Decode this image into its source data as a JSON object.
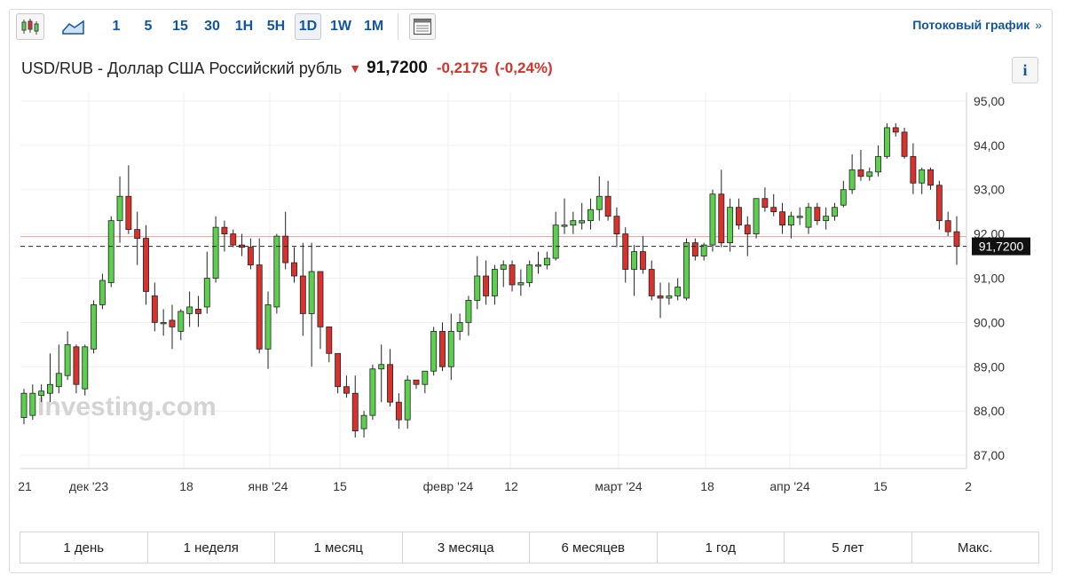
{
  "toolbar": {
    "intervals": [
      "1",
      "5",
      "15",
      "30",
      "1H",
      "5H",
      "1D",
      "1W",
      "1M"
    ],
    "active_interval": "1D",
    "stream_label": "Потоковый график",
    "stream_arrow": "»"
  },
  "header": {
    "name": "USD/RUB - Доллар США Российский рубль",
    "price": "91,7200",
    "change": "-0,2175",
    "change_pct": "(-0,24%)",
    "info_label": "i"
  },
  "colors": {
    "up": "#5ccf4e",
    "down": "#d9312b",
    "accent": "#1256a0"
  },
  "chart_data": {
    "type": "candlestick",
    "ylim": [
      86.7,
      95.2
    ],
    "y_ticks": [
      "87,00",
      "88,00",
      "89,00",
      "90,00",
      "91,00",
      "92,00",
      "93,00",
      "94,00",
      "95,00"
    ],
    "y_tick_values": [
      87,
      88,
      89,
      90,
      91,
      92,
      93,
      94,
      95
    ],
    "x_tick_labels": [
      "21",
      "дек '23",
      "18",
      "янв '24",
      "15",
      "февр '24",
      "12",
      "март '24",
      "18",
      "апр '24",
      "15",
      "2"
    ],
    "last_price_label": "91,7200",
    "last_price": 91.72,
    "prev_close": 91.94,
    "watermark": "Investing.com",
    "candles": [
      {
        "o": 87.85,
        "h": 88.5,
        "l": 87.7,
        "c": 88.4
      },
      {
        "o": 87.9,
        "h": 88.6,
        "l": 87.8,
        "c": 88.4
      },
      {
        "o": 88.35,
        "h": 88.6,
        "l": 88.2,
        "c": 88.45
      },
      {
        "o": 88.4,
        "h": 89.3,
        "l": 88.2,
        "c": 88.6
      },
      {
        "o": 88.55,
        "h": 89.5,
        "l": 88.4,
        "c": 88.85
      },
      {
        "o": 88.8,
        "h": 89.8,
        "l": 88.7,
        "c": 89.5
      },
      {
        "o": 89.45,
        "h": 89.5,
        "l": 88.4,
        "c": 88.6
      },
      {
        "o": 88.5,
        "h": 89.5,
        "l": 88.35,
        "c": 89.45
      },
      {
        "o": 89.4,
        "h": 90.5,
        "l": 89.3,
        "c": 90.4
      },
      {
        "o": 90.4,
        "h": 91.1,
        "l": 90.3,
        "c": 90.95
      },
      {
        "o": 90.9,
        "h": 92.4,
        "l": 90.8,
        "c": 92.3
      },
      {
        "o": 92.3,
        "h": 93.3,
        "l": 91.8,
        "c": 92.85
      },
      {
        "o": 92.85,
        "h": 93.55,
        "l": 92.0,
        "c": 92.1
      },
      {
        "o": 92.1,
        "h": 92.5,
        "l": 91.3,
        "c": 91.9
      },
      {
        "o": 91.9,
        "h": 92.2,
        "l": 90.4,
        "c": 90.7
      },
      {
        "o": 90.6,
        "h": 90.9,
        "l": 89.8,
        "c": 90.0
      },
      {
        "o": 90.0,
        "h": 90.3,
        "l": 89.7,
        "c": 90.0
      },
      {
        "o": 90.05,
        "h": 90.4,
        "l": 89.4,
        "c": 89.9
      },
      {
        "o": 89.8,
        "h": 90.3,
        "l": 89.6,
        "c": 90.25
      },
      {
        "o": 90.2,
        "h": 90.7,
        "l": 89.9,
        "c": 90.35
      },
      {
        "o": 90.3,
        "h": 90.6,
        "l": 89.9,
        "c": 90.2
      },
      {
        "o": 90.35,
        "h": 91.6,
        "l": 90.2,
        "c": 91.0
      },
      {
        "o": 91.0,
        "h": 92.4,
        "l": 90.9,
        "c": 92.15
      },
      {
        "o": 92.15,
        "h": 92.3,
        "l": 91.6,
        "c": 92.0
      },
      {
        "o": 92.0,
        "h": 92.1,
        "l": 91.7,
        "c": 91.75
      },
      {
        "o": 91.75,
        "h": 92.0,
        "l": 91.5,
        "c": 91.7
      },
      {
        "o": 91.7,
        "h": 91.9,
        "l": 91.2,
        "c": 91.3
      },
      {
        "o": 91.3,
        "h": 91.9,
        "l": 89.3,
        "c": 89.4
      },
      {
        "o": 89.4,
        "h": 90.7,
        "l": 88.95,
        "c": 90.4
      },
      {
        "o": 90.35,
        "h": 92.0,
        "l": 90.2,
        "c": 91.95
      },
      {
        "o": 91.95,
        "h": 92.5,
        "l": 91.2,
        "c": 91.35
      },
      {
        "o": 91.35,
        "h": 91.7,
        "l": 90.9,
        "c": 91.05
      },
      {
        "o": 91.05,
        "h": 91.8,
        "l": 89.7,
        "c": 90.2
      },
      {
        "o": 90.2,
        "h": 91.8,
        "l": 89.0,
        "c": 91.15
      },
      {
        "o": 91.15,
        "h": 91.15,
        "l": 89.4,
        "c": 89.9
      },
      {
        "o": 89.9,
        "h": 89.9,
        "l": 89.1,
        "c": 89.3
      },
      {
        "o": 89.3,
        "h": 89.3,
        "l": 88.4,
        "c": 88.55
      },
      {
        "o": 88.55,
        "h": 88.8,
        "l": 88.3,
        "c": 88.4
      },
      {
        "o": 88.4,
        "h": 88.8,
        "l": 87.4,
        "c": 87.55
      },
      {
        "o": 87.6,
        "h": 88.0,
        "l": 87.4,
        "c": 87.9
      },
      {
        "o": 87.9,
        "h": 89.05,
        "l": 87.8,
        "c": 88.95
      },
      {
        "o": 88.95,
        "h": 89.5,
        "l": 88.2,
        "c": 89.05
      },
      {
        "o": 89.05,
        "h": 89.4,
        "l": 88.1,
        "c": 88.2
      },
      {
        "o": 88.2,
        "h": 88.4,
        "l": 87.6,
        "c": 87.8
      },
      {
        "o": 87.8,
        "h": 88.8,
        "l": 87.6,
        "c": 88.7
      },
      {
        "o": 88.7,
        "h": 88.7,
        "l": 88.5,
        "c": 88.6
      },
      {
        "o": 88.6,
        "h": 88.9,
        "l": 88.4,
        "c": 88.9
      },
      {
        "o": 88.9,
        "h": 89.9,
        "l": 88.8,
        "c": 89.8
      },
      {
        "o": 89.8,
        "h": 90.0,
        "l": 88.9,
        "c": 89.0
      },
      {
        "o": 89.0,
        "h": 90.2,
        "l": 88.7,
        "c": 89.8
      },
      {
        "o": 89.8,
        "h": 90.2,
        "l": 89.6,
        "c": 90.0
      },
      {
        "o": 90.0,
        "h": 90.6,
        "l": 89.7,
        "c": 90.5
      },
      {
        "o": 90.5,
        "h": 91.5,
        "l": 90.3,
        "c": 91.05
      },
      {
        "o": 91.05,
        "h": 91.4,
        "l": 90.4,
        "c": 90.6
      },
      {
        "o": 90.6,
        "h": 91.3,
        "l": 90.4,
        "c": 91.2
      },
      {
        "o": 91.2,
        "h": 91.4,
        "l": 90.8,
        "c": 91.3
      },
      {
        "o": 91.3,
        "h": 91.4,
        "l": 90.7,
        "c": 90.85
      },
      {
        "o": 90.85,
        "h": 91.2,
        "l": 90.6,
        "c": 90.9
      },
      {
        "o": 90.9,
        "h": 91.4,
        "l": 90.8,
        "c": 91.3
      },
      {
        "o": 91.3,
        "h": 91.6,
        "l": 91.1,
        "c": 91.3
      },
      {
        "o": 91.3,
        "h": 91.6,
        "l": 91.2,
        "c": 91.45
      },
      {
        "o": 91.45,
        "h": 92.5,
        "l": 91.4,
        "c": 92.2
      },
      {
        "o": 92.2,
        "h": 92.8,
        "l": 92.0,
        "c": 92.2
      },
      {
        "o": 92.2,
        "h": 92.5,
        "l": 92.0,
        "c": 92.3
      },
      {
        "o": 92.25,
        "h": 92.7,
        "l": 92.1,
        "c": 92.3
      },
      {
        "o": 92.3,
        "h": 92.8,
        "l": 92.1,
        "c": 92.55
      },
      {
        "o": 92.55,
        "h": 93.3,
        "l": 92.3,
        "c": 92.85
      },
      {
        "o": 92.85,
        "h": 93.2,
        "l": 92.3,
        "c": 92.4
      },
      {
        "o": 92.4,
        "h": 92.6,
        "l": 91.7,
        "c": 92.0
      },
      {
        "o": 92.0,
        "h": 92.15,
        "l": 90.9,
        "c": 91.2
      },
      {
        "o": 91.2,
        "h": 91.75,
        "l": 90.6,
        "c": 91.6
      },
      {
        "o": 91.6,
        "h": 91.95,
        "l": 91.1,
        "c": 91.2
      },
      {
        "o": 91.2,
        "h": 91.4,
        "l": 90.5,
        "c": 90.6
      },
      {
        "o": 90.6,
        "h": 90.9,
        "l": 90.1,
        "c": 90.55
      },
      {
        "o": 90.55,
        "h": 90.9,
        "l": 90.4,
        "c": 90.6
      },
      {
        "o": 90.6,
        "h": 91.0,
        "l": 90.5,
        "c": 90.8
      },
      {
        "o": 90.55,
        "h": 91.9,
        "l": 90.5,
        "c": 91.8
      },
      {
        "o": 91.8,
        "h": 91.9,
        "l": 91.4,
        "c": 91.5
      },
      {
        "o": 91.5,
        "h": 91.8,
        "l": 91.4,
        "c": 91.75
      },
      {
        "o": 91.75,
        "h": 93.0,
        "l": 91.6,
        "c": 92.9
      },
      {
        "o": 92.9,
        "h": 93.45,
        "l": 91.7,
        "c": 91.8
      },
      {
        "o": 91.8,
        "h": 92.8,
        "l": 91.6,
        "c": 92.6
      },
      {
        "o": 92.6,
        "h": 92.8,
        "l": 92.1,
        "c": 92.2
      },
      {
        "o": 92.2,
        "h": 92.4,
        "l": 91.5,
        "c": 92.0
      },
      {
        "o": 92.0,
        "h": 92.8,
        "l": 91.9,
        "c": 92.8
      },
      {
        "o": 92.8,
        "h": 93.05,
        "l": 92.5,
        "c": 92.6
      },
      {
        "o": 92.6,
        "h": 92.9,
        "l": 92.4,
        "c": 92.5
      },
      {
        "o": 92.5,
        "h": 92.7,
        "l": 92.0,
        "c": 92.2
      },
      {
        "o": 92.2,
        "h": 92.5,
        "l": 91.9,
        "c": 92.4
      },
      {
        "o": 92.4,
        "h": 92.6,
        "l": 92.2,
        "c": 92.4
      },
      {
        "o": 92.15,
        "h": 92.7,
        "l": 92.0,
        "c": 92.6
      },
      {
        "o": 92.6,
        "h": 92.7,
        "l": 92.2,
        "c": 92.3
      },
      {
        "o": 92.3,
        "h": 92.6,
        "l": 92.1,
        "c": 92.4
      },
      {
        "o": 92.4,
        "h": 92.7,
        "l": 92.3,
        "c": 92.6
      },
      {
        "o": 92.65,
        "h": 93.2,
        "l": 92.6,
        "c": 93.0
      },
      {
        "o": 93.0,
        "h": 93.8,
        "l": 92.9,
        "c": 93.45
      },
      {
        "o": 93.45,
        "h": 93.9,
        "l": 93.2,
        "c": 93.3
      },
      {
        "o": 93.3,
        "h": 93.5,
        "l": 93.2,
        "c": 93.4
      },
      {
        "o": 93.4,
        "h": 94.0,
        "l": 93.3,
        "c": 93.75
      },
      {
        "o": 93.75,
        "h": 94.5,
        "l": 93.7,
        "c": 94.4
      },
      {
        "o": 94.4,
        "h": 94.5,
        "l": 94.2,
        "c": 94.3
      },
      {
        "o": 94.3,
        "h": 94.4,
        "l": 93.7,
        "c": 93.75
      },
      {
        "o": 93.75,
        "h": 94.05,
        "l": 92.9,
        "c": 93.15
      },
      {
        "o": 93.15,
        "h": 93.5,
        "l": 92.9,
        "c": 93.45
      },
      {
        "o": 93.45,
        "h": 93.5,
        "l": 93.0,
        "c": 93.1
      },
      {
        "o": 93.1,
        "h": 93.2,
        "l": 92.1,
        "c": 92.3
      },
      {
        "o": 92.3,
        "h": 92.5,
        "l": 91.95,
        "c": 92.05
      },
      {
        "o": 92.05,
        "h": 92.4,
        "l": 91.3,
        "c": 91.72
      }
    ]
  },
  "ranges": [
    "1 день",
    "1 неделя",
    "1 месяц",
    "3 месяца",
    "6 месяцев",
    "1 год",
    "5 лет",
    "Макс."
  ]
}
